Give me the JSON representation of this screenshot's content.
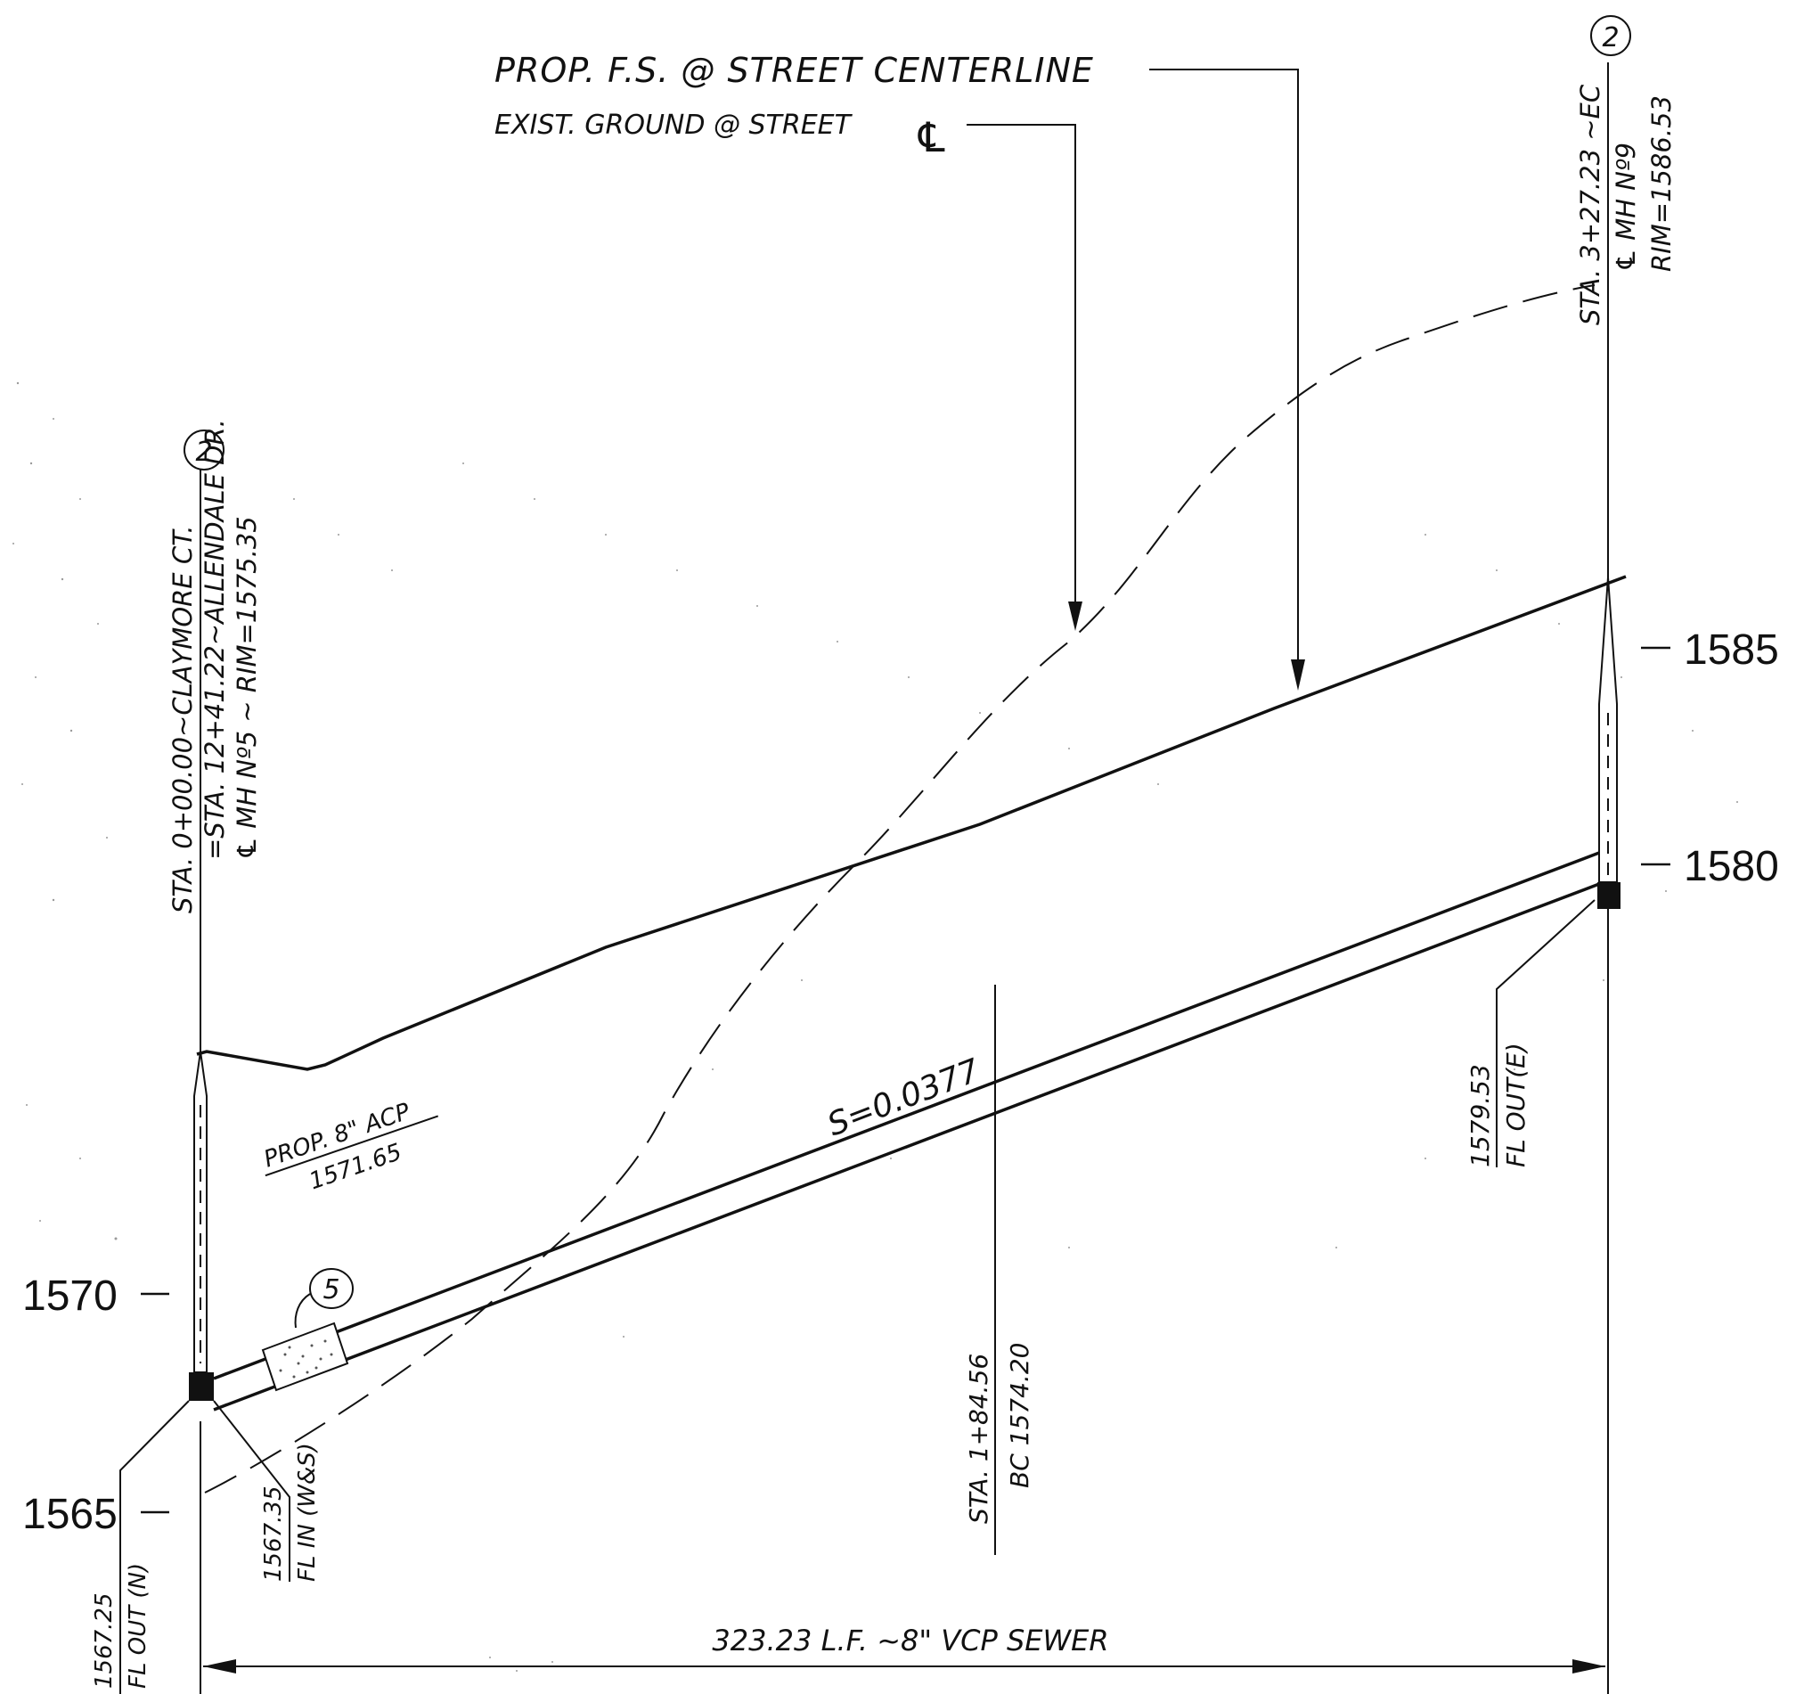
{
  "labels": {
    "prop_fs": "PROP. F.S. @ STREET CENTERLINE",
    "exist_ground": "EXIST. GROUND @ STREET",
    "cl_symbol": "℄",
    "mh_left_line1": "STA. 0+00.00~CLAYMORE CT.",
    "mh_left_line2": "=STA. 12+41.22~ALLENDALE DR.",
    "mh_left_line3": "℄ MH Nº5 ~ RIM=1575.35",
    "mh_right_line1": "STA. 3+27.23 ~EC",
    "mh_right_line2": "℄ MH Nº9",
    "mh_right_line3": "RIM=1586.53",
    "slope": "S=0.0377",
    "acp_label": "PROP. 8\" ACP",
    "acp_elev": "1571.65",
    "sta_bc": "STA. 1+84.56",
    "bc_elev": "BC 1574.20",
    "fl_out_e_value": "1579.53",
    "fl_out_e_label": "FL OUT(E)",
    "fl_out_n_value": "1567.25",
    "fl_out_n_label": "FL OUT (N)",
    "fl_in_value": "1567.35",
    "fl_in_label": "FL IN (W&S)",
    "dimension": "323.23 L.F. ~8\" VCP SEWER",
    "callout_2_left": "2",
    "callout_2_right": "2",
    "callout_5": "5"
  },
  "elevation_ticks": [
    "1585",
    "1580",
    "1570",
    "1565"
  ]
}
